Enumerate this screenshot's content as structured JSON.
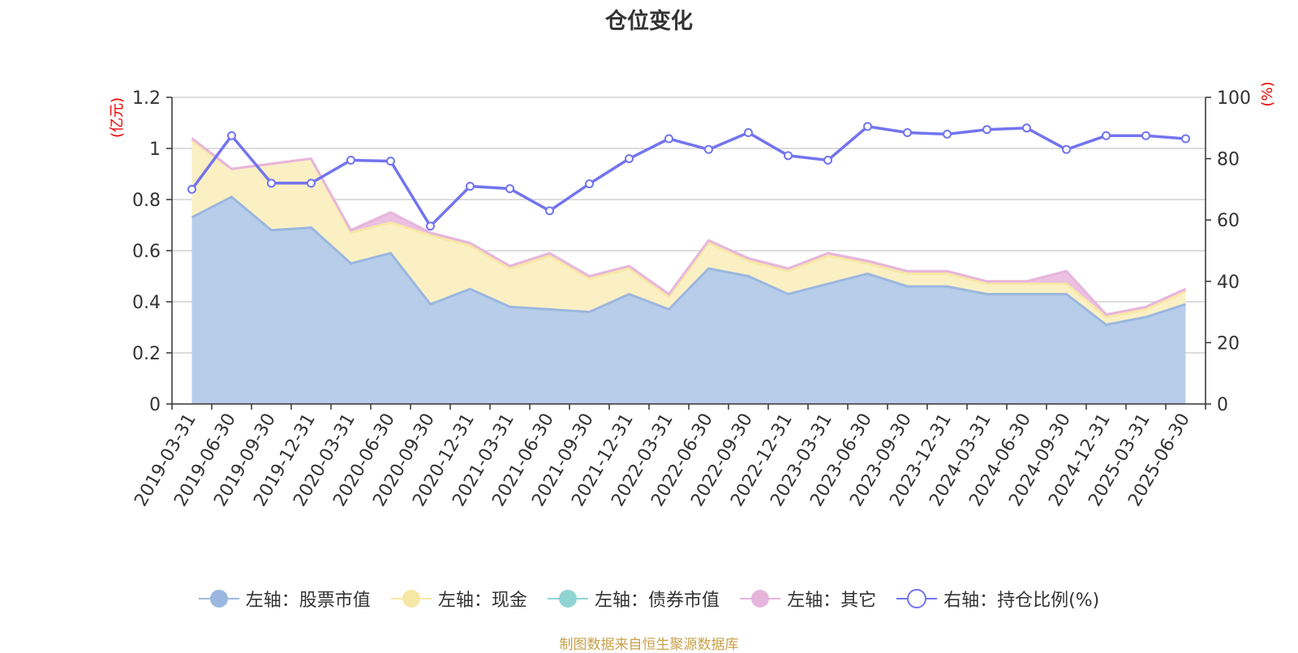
{
  "title": "仓位变化",
  "source_note": "制图数据来自恒生聚源数据库",
  "colors": {
    "stock": "#9bb7df",
    "stock_fill": "#b8cdea",
    "cash": "#f7e7a6",
    "cash_fill": "#faf0c4",
    "bond": "#8fd3d3",
    "other": "#e7b5dc",
    "ratio": "#7274ee",
    "axis_unit": "#ee0000",
    "grid": "#c8c8c8",
    "axis": "#333333"
  },
  "chart_data": {
    "type": "area",
    "title": "仓位变化",
    "x": [
      "2019-03-31",
      "2019-06-30",
      "2019-09-30",
      "2019-12-31",
      "2020-03-31",
      "2020-06-30",
      "2020-09-30",
      "2020-12-31",
      "2021-03-31",
      "2021-06-30",
      "2021-09-30",
      "2021-12-31",
      "2022-03-31",
      "2022-06-30",
      "2022-09-30",
      "2022-12-31",
      "2023-03-31",
      "2023-06-30",
      "2023-09-30",
      "2023-12-31",
      "2024-03-31",
      "2024-06-30",
      "2024-09-30",
      "2024-12-31",
      "2025-03-31",
      "2025-06-30"
    ],
    "y_left": {
      "unit": "(亿元)",
      "range": [
        0,
        1.2
      ],
      "ticks": [
        "0",
        "0.2",
        "0.4",
        "0.6",
        "0.8",
        "1",
        "1.2"
      ]
    },
    "y_right": {
      "unit": "(%)",
      "range": [
        0,
        100
      ],
      "ticks": [
        "0",
        "20",
        "40",
        "60",
        "80",
        "100"
      ]
    },
    "series": [
      {
        "key": "stock",
        "name": "左轴：股票市值",
        "axis": "left",
        "type": "area",
        "values": [
          0.73,
          0.81,
          0.68,
          0.69,
          0.55,
          0.59,
          0.39,
          0.45,
          0.38,
          0.37,
          0.36,
          0.43,
          0.37,
          0.53,
          0.5,
          0.43,
          0.47,
          0.51,
          0.46,
          0.46,
          0.43,
          0.43,
          0.43,
          0.31,
          0.34,
          0.39
        ]
      },
      {
        "key": "cash",
        "name": "左轴：现金",
        "axis": "left",
        "type": "area",
        "values": [
          0.3,
          0.11,
          0.26,
          0.27,
          0.12,
          0.12,
          0.27,
          0.17,
          0.15,
          0.21,
          0.13,
          0.1,
          0.05,
          0.1,
          0.06,
          0.09,
          0.11,
          0.04,
          0.05,
          0.05,
          0.04,
          0.04,
          0.04,
          0.03,
          0.03,
          0.05
        ]
      },
      {
        "key": "bond",
        "name": "左轴：债券市值",
        "axis": "left",
        "type": "area",
        "values": [
          0,
          0,
          0,
          0,
          0,
          0,
          0,
          0,
          0,
          0,
          0,
          0,
          0,
          0,
          0,
          0,
          0,
          0,
          0,
          0,
          0,
          0,
          0,
          0,
          0,
          0
        ]
      },
      {
        "key": "other",
        "name": "左轴：其它",
        "axis": "left",
        "type": "area",
        "values": [
          0.01,
          0,
          0,
          0,
          0.01,
          0.04,
          0.01,
          0.01,
          0.01,
          0.01,
          0.01,
          0.01,
          0.01,
          0.01,
          0.01,
          0.01,
          0.01,
          0.01,
          0.01,
          0.01,
          0.01,
          0.01,
          0.05,
          0.01,
          0.01,
          0.01
        ]
      },
      {
        "key": "ratio",
        "name": "右轴：持仓比例(%)",
        "axis": "right",
        "type": "line",
        "values": [
          70,
          87.5,
          72,
          72,
          79.5,
          79.2,
          58,
          71,
          70.2,
          63,
          71.8,
          80,
          86.5,
          83,
          88.5,
          81,
          79.5,
          90.5,
          88.5,
          88,
          89.5,
          90,
          83,
          87.5,
          87.5,
          86.5
        ]
      }
    ],
    "legend_position": "bottom",
    "grid": true
  }
}
